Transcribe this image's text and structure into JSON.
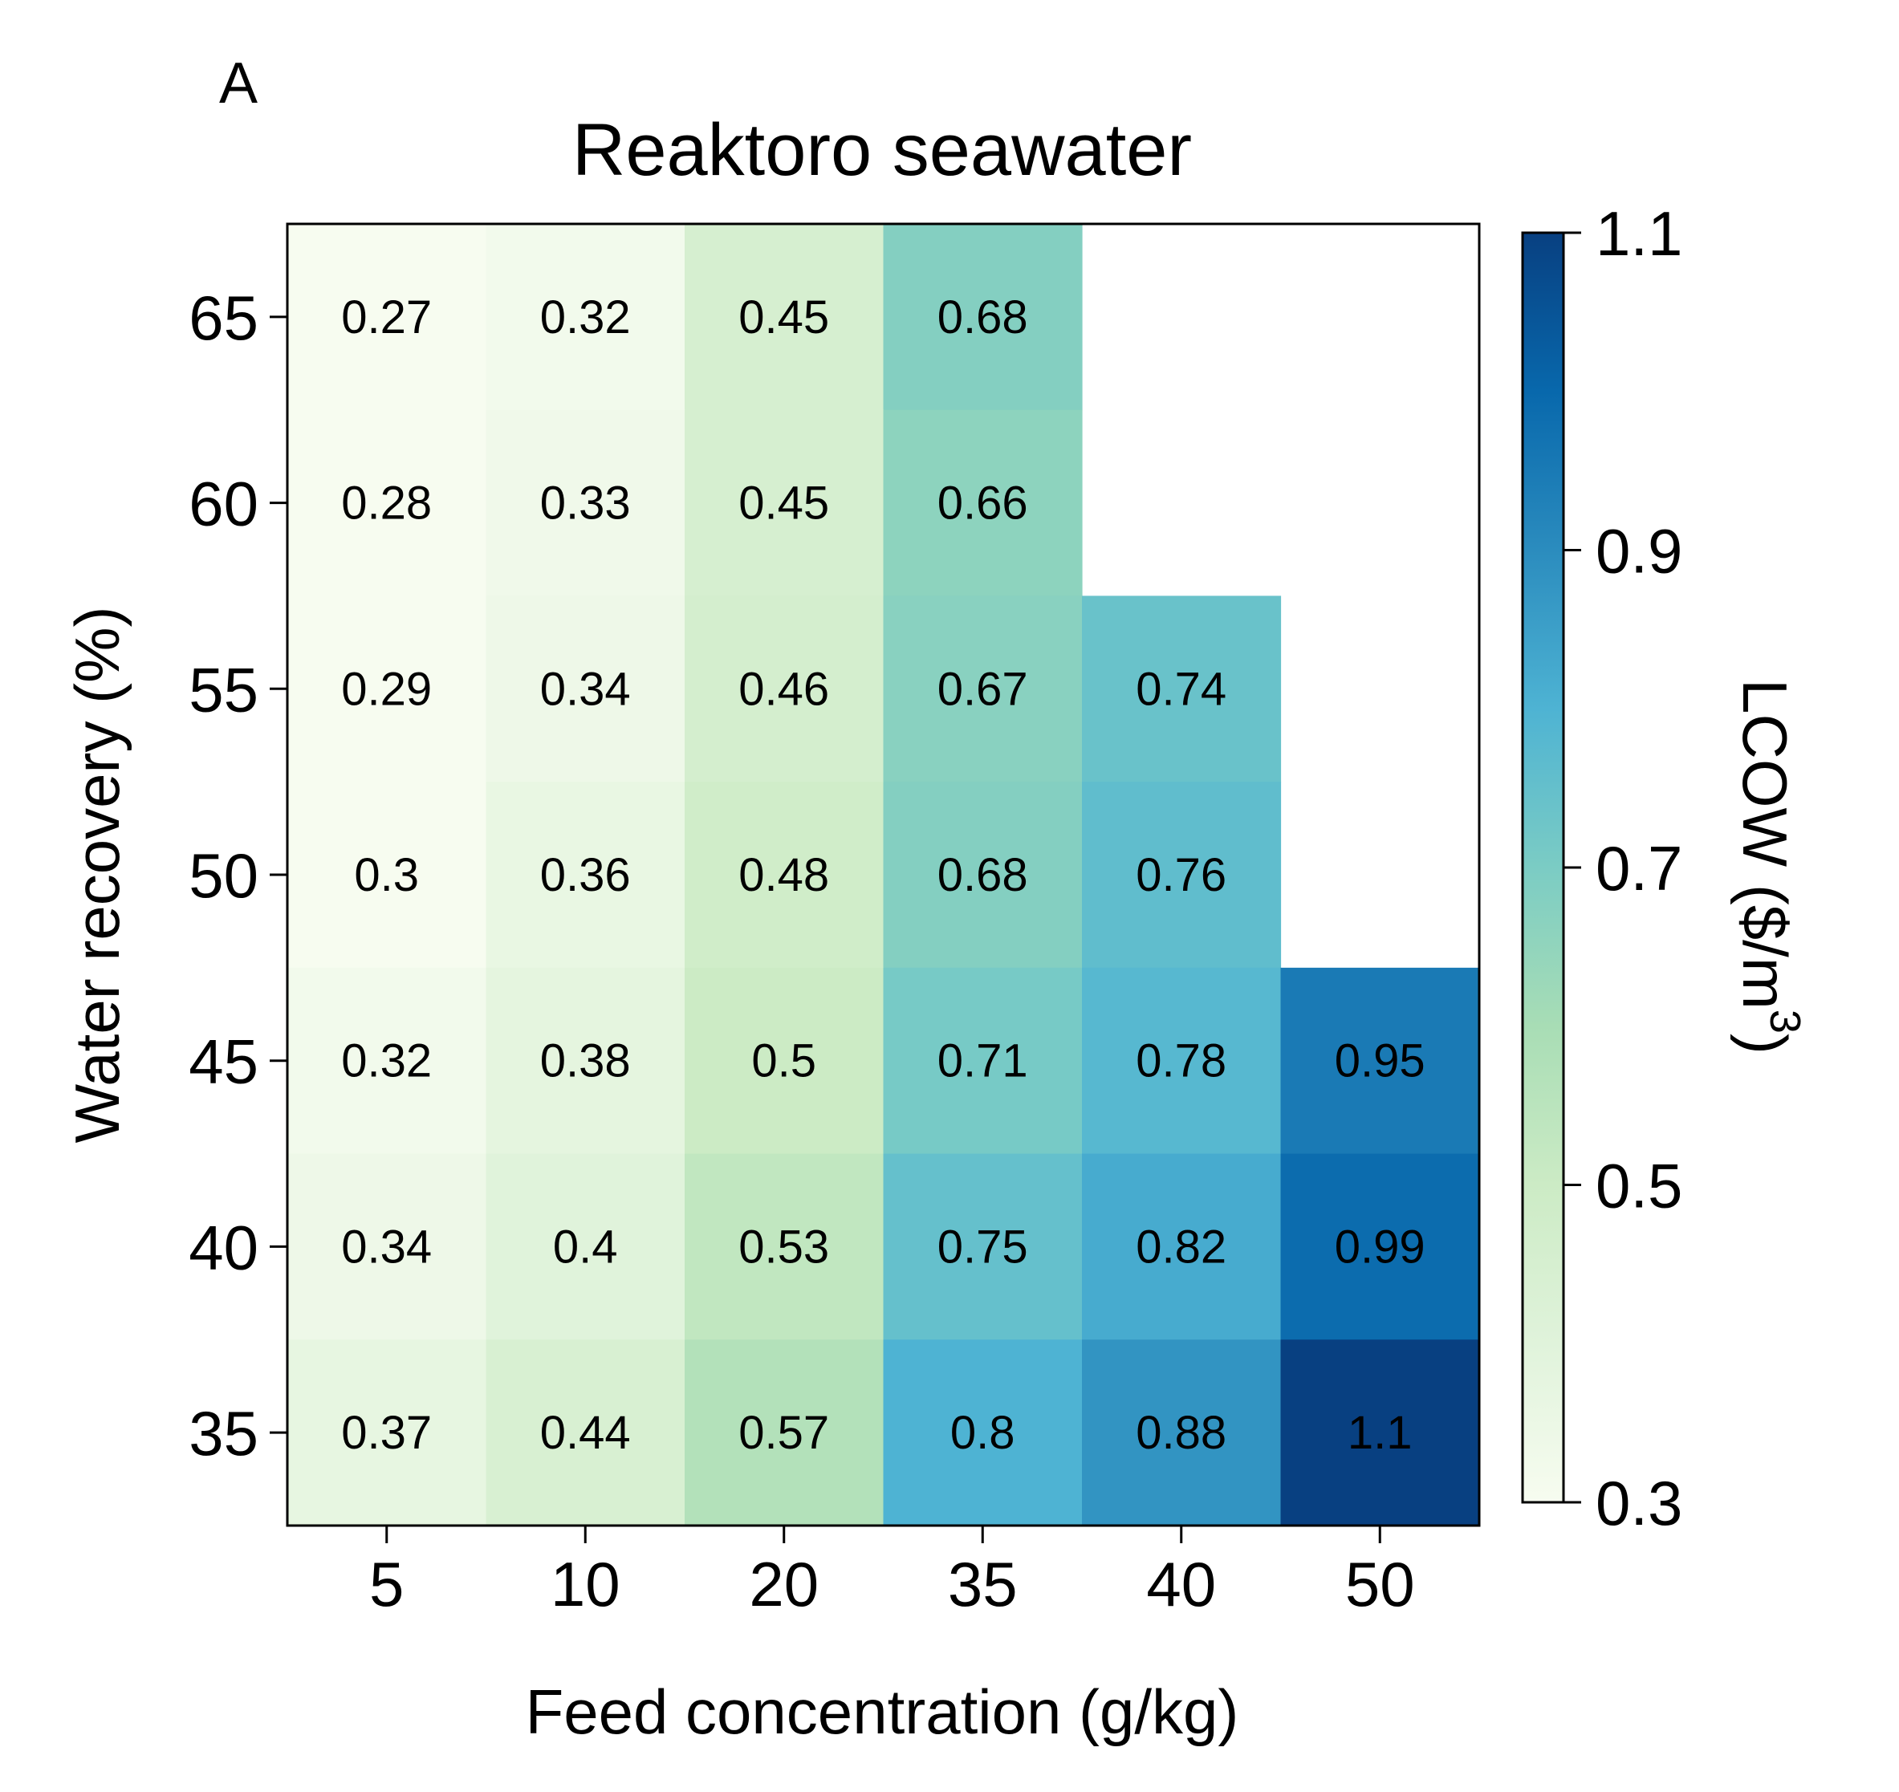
{
  "panel_label": "A",
  "chart_data": {
    "type": "heatmap",
    "title": "Reaktoro seawater",
    "xlabel": "Feed concentration (g/kg)",
    "ylabel": "Water recovery (%)",
    "x_categories": [
      "5",
      "10",
      "20",
      "35",
      "40",
      "50"
    ],
    "y_categories": [
      "65",
      "60",
      "55",
      "50",
      "45",
      "40",
      "35"
    ],
    "values": [
      [
        0.27,
        0.32,
        0.45,
        0.68,
        null,
        null
      ],
      [
        0.28,
        0.33,
        0.45,
        0.66,
        null,
        null
      ],
      [
        0.29,
        0.34,
        0.46,
        0.67,
        0.74,
        null
      ],
      [
        0.3,
        0.36,
        0.48,
        0.68,
        0.76,
        null
      ],
      [
        0.32,
        0.38,
        0.5,
        0.71,
        0.78,
        0.95
      ],
      [
        0.34,
        0.4,
        0.53,
        0.75,
        0.82,
        0.99
      ],
      [
        0.37,
        0.44,
        0.57,
        0.8,
        0.88,
        1.1
      ]
    ],
    "cell_labels": [
      [
        "0.27",
        "0.32",
        "0.45",
        "0.68",
        "",
        ""
      ],
      [
        "0.28",
        "0.33",
        "0.45",
        "0.66",
        "",
        ""
      ],
      [
        "0.29",
        "0.34",
        "0.46",
        "0.67",
        "0.74",
        ""
      ],
      [
        "0.3",
        "0.36",
        "0.48",
        "0.68",
        "0.76",
        ""
      ],
      [
        "0.32",
        "0.38",
        "0.5",
        "0.71",
        "0.78",
        "0.95"
      ],
      [
        "0.34",
        "0.4",
        "0.53",
        "0.75",
        "0.82",
        "0.99"
      ],
      [
        "0.37",
        "0.44",
        "0.57",
        "0.8",
        "0.88",
        "1.1"
      ]
    ],
    "colorbar": {
      "label_main": "LCOW ($/m",
      "label_superscript": "3",
      "label_close": ")",
      "range": [
        0.3,
        1.1
      ],
      "ticks": [
        "0.3",
        "0.5",
        "0.7",
        "0.9",
        "1.1"
      ],
      "colormap": "GnBu",
      "colors": [
        "#f7fcf0",
        "#e0f3db",
        "#ccebc5",
        "#a8ddb5",
        "#7bccc4",
        "#4eb3d3",
        "#2b8cbe",
        "#0868ac",
        "#084081"
      ]
    }
  }
}
